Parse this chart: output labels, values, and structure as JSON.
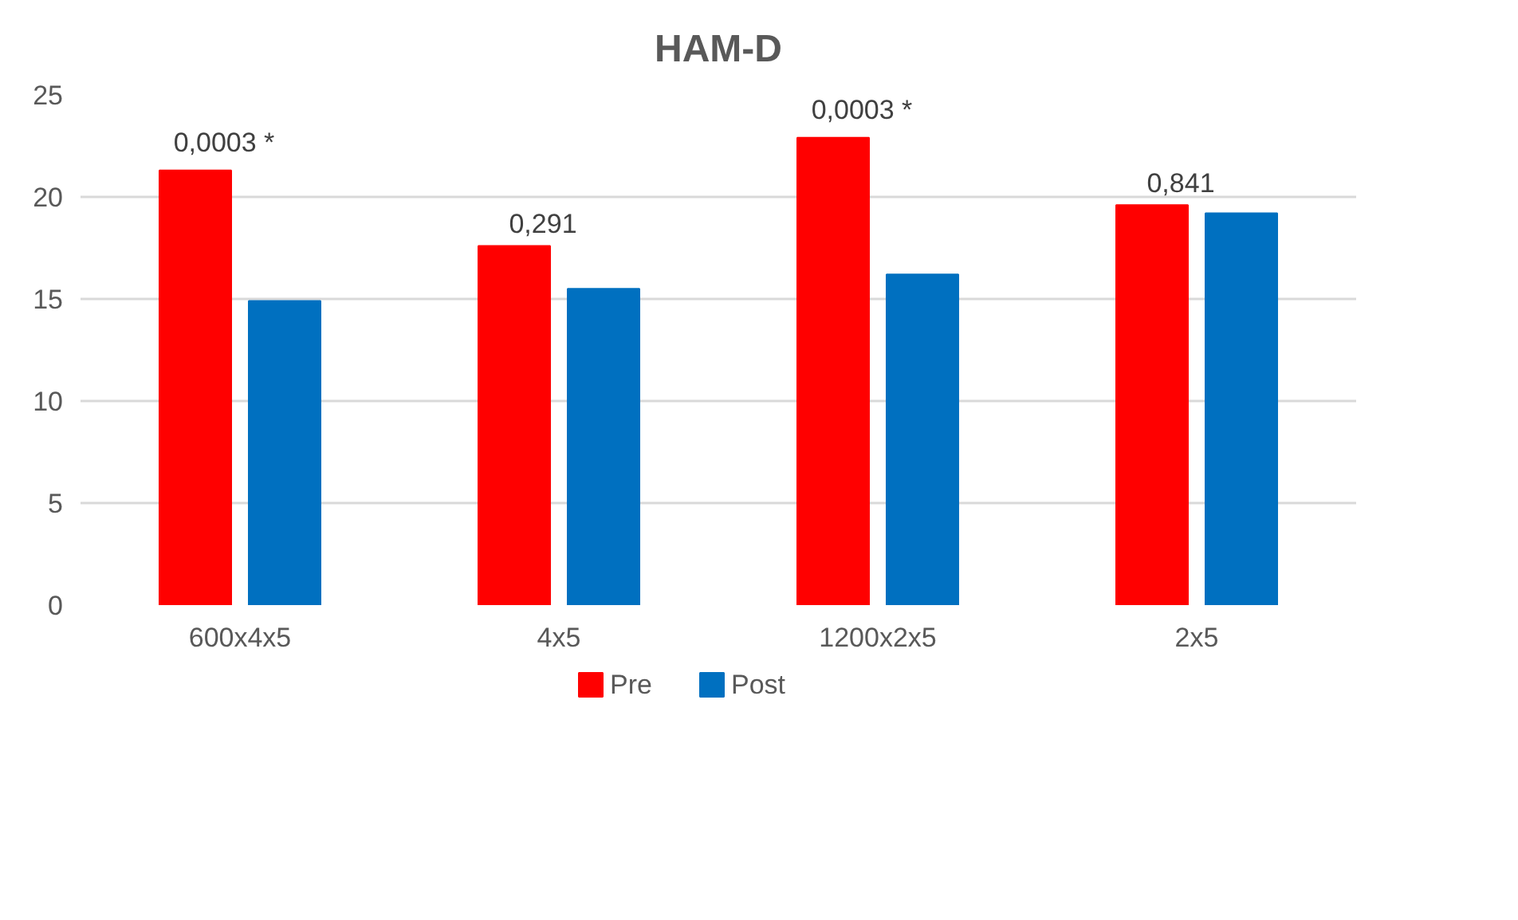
{
  "chart_data": {
    "type": "bar",
    "title": "HAM-D",
    "categories": [
      "600x4x5",
      "4x5",
      "1200x2x5",
      "2x5"
    ],
    "series": [
      {
        "name": "Pre",
        "color": "#ff0000",
        "values": [
          21.3,
          17.6,
          22.9,
          19.6
        ]
      },
      {
        "name": "Post",
        "color": "#0070c0",
        "values": [
          14.9,
          15.5,
          16.2,
          19.2
        ]
      }
    ],
    "ylim": [
      0,
      25
    ],
    "yticks": [
      0,
      5,
      10,
      15,
      20,
      25
    ],
    "grid": "y",
    "legend": "bottom",
    "annotations": [
      "0,0003 *",
      "0,291",
      "0,0003 *",
      "0,841"
    ]
  }
}
